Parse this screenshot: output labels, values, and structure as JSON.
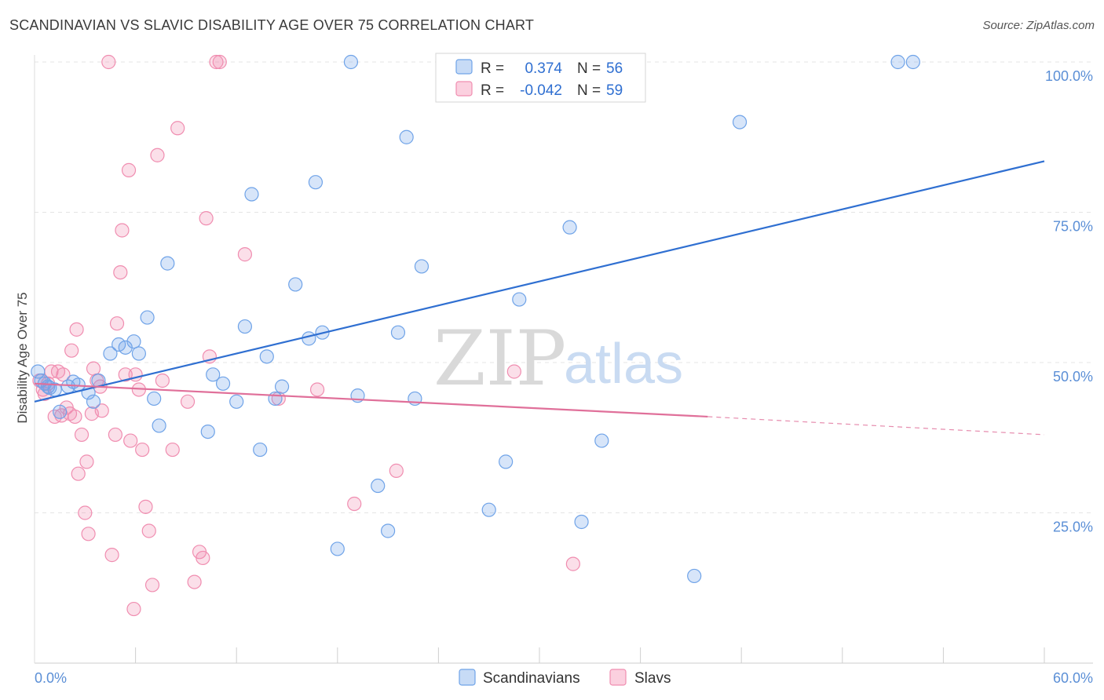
{
  "header": {
    "title": "SCANDINAVIAN VS SLAVIC DISABILITY AGE OVER 75 CORRELATION CHART",
    "source": "Source: ZipAtlas.com"
  },
  "watermark": {
    "zip": "ZIP",
    "atlas": "atlas"
  },
  "legend": {
    "r_label": "R =",
    "n_label": "N =",
    "rows": [
      {
        "r": "0.374",
        "n": "56",
        "color": "#6fa3e8"
      },
      {
        "r": "-0.042",
        "n": "59",
        "color": "#f08db0"
      }
    ]
  },
  "bottom_legend": [
    "Scandinavians",
    "Slavs"
  ],
  "chart_data": {
    "type": "scatter",
    "title": "SCANDINAVIAN VS SLAVIC DISABILITY AGE OVER 75 CORRELATION CHART",
    "xlabel": "",
    "ylabel": "Disability Age Over 75",
    "xlim": [
      0,
      60
    ],
    "ylim": [
      0,
      105
    ],
    "x_tick_labels": [
      "0.0%",
      "60.0%"
    ],
    "y_ticks": [
      25,
      50,
      75,
      100
    ],
    "y_tick_labels": [
      "25.0%",
      "50.0%",
      "75.0%",
      "100.0%"
    ],
    "grid": true,
    "legend_position": "top-center",
    "series": [
      {
        "name": "Scandinavians",
        "color": "#6fa3e8",
        "r": 0.374,
        "n": 56,
        "trend": {
          "x": [
            0,
            60
          ],
          "y": [
            43.5,
            83.5
          ]
        },
        "points": [
          [
            0.2,
            48.5
          ],
          [
            0.4,
            47.0
          ],
          [
            0.6,
            46.5
          ],
          [
            0.8,
            46.0
          ],
          [
            1.2,
            45.5
          ],
          [
            1.5,
            41.8
          ],
          [
            2.0,
            46.0
          ],
          [
            2.6,
            46.3
          ],
          [
            3.2,
            45.0
          ],
          [
            3.5,
            43.5
          ],
          [
            3.8,
            47.0
          ],
          [
            4.5,
            51.5
          ],
          [
            5.0,
            53.0
          ],
          [
            5.4,
            52.5
          ],
          [
            5.9,
            53.5
          ],
          [
            6.2,
            51.5
          ],
          [
            6.7,
            57.5
          ],
          [
            7.1,
            44.0
          ],
          [
            7.4,
            39.5
          ],
          [
            7.9,
            66.5
          ],
          [
            10.3,
            38.5
          ],
          [
            10.6,
            48.0
          ],
          [
            11.2,
            46.5
          ],
          [
            12.0,
            43.5
          ],
          [
            12.5,
            56.0
          ],
          [
            12.9,
            78.0
          ],
          [
            13.4,
            35.5
          ],
          [
            13.8,
            51.0
          ],
          [
            14.3,
            44.0
          ],
          [
            14.7,
            46.0
          ],
          [
            15.5,
            63.0
          ],
          [
            16.3,
            54.0
          ],
          [
            16.7,
            80.0
          ],
          [
            17.1,
            55.0
          ],
          [
            18.0,
            19.0
          ],
          [
            18.8,
            100.0
          ],
          [
            19.2,
            44.5
          ],
          [
            20.4,
            29.5
          ],
          [
            21.0,
            22.0
          ],
          [
            21.6,
            55.0
          ],
          [
            22.1,
            87.5
          ],
          [
            22.6,
            44.0
          ],
          [
            23.0,
            66.0
          ],
          [
            27.0,
            25.5
          ],
          [
            27.4,
            100.0
          ],
          [
            28.0,
            33.5
          ],
          [
            28.8,
            60.5
          ],
          [
            31.8,
            72.5
          ],
          [
            32.5,
            23.5
          ],
          [
            33.7,
            37.0
          ],
          [
            39.2,
            14.5
          ],
          [
            41.9,
            90.0
          ],
          [
            51.3,
            100.0
          ],
          [
            52.2,
            100.0
          ],
          [
            0.9,
            45.8
          ],
          [
            2.3,
            46.8
          ]
        ]
      },
      {
        "name": "Slavs",
        "color": "#f08db0",
        "r": -0.042,
        "n": 59,
        "trend": {
          "x": [
            0,
            40
          ],
          "y": [
            46.5,
            41.0
          ]
        },
        "trend_dashed": {
          "x": [
            40,
            60
          ],
          "y": [
            41.0,
            38.0
          ]
        },
        "points": [
          [
            0.3,
            47.0
          ],
          [
            0.5,
            45.5
          ],
          [
            0.8,
            46.5
          ],
          [
            1.0,
            48.5
          ],
          [
            1.2,
            41.0
          ],
          [
            1.4,
            48.5
          ],
          [
            1.6,
            41.2
          ],
          [
            1.7,
            48.0
          ],
          [
            1.9,
            42.5
          ],
          [
            2.1,
            41.5
          ],
          [
            2.2,
            52.0
          ],
          [
            2.4,
            41.0
          ],
          [
            2.5,
            55.5
          ],
          [
            2.6,
            31.5
          ],
          [
            2.8,
            38.0
          ],
          [
            3.0,
            25.0
          ],
          [
            3.1,
            33.5
          ],
          [
            3.2,
            21.5
          ],
          [
            3.4,
            41.5
          ],
          [
            3.5,
            49.0
          ],
          [
            3.7,
            47.0
          ],
          [
            3.9,
            46.0
          ],
          [
            4.0,
            42.0
          ],
          [
            4.4,
            100.0
          ],
          [
            4.6,
            18.0
          ],
          [
            4.8,
            38.0
          ],
          [
            4.9,
            56.5
          ],
          [
            5.1,
            65.0
          ],
          [
            5.2,
            72.0
          ],
          [
            5.4,
            48.0
          ],
          [
            5.6,
            82.0
          ],
          [
            5.7,
            37.0
          ],
          [
            5.9,
            9.0
          ],
          [
            6.0,
            48.0
          ],
          [
            6.2,
            45.5
          ],
          [
            6.4,
            35.5
          ],
          [
            6.6,
            26.0
          ],
          [
            6.8,
            22.0
          ],
          [
            7.0,
            13.0
          ],
          [
            7.3,
            84.5
          ],
          [
            7.6,
            47.0
          ],
          [
            8.2,
            35.5
          ],
          [
            8.5,
            89.0
          ],
          [
            9.1,
            43.5
          ],
          [
            9.5,
            13.5
          ],
          [
            9.8,
            18.5
          ],
          [
            10.0,
            17.5
          ],
          [
            10.2,
            74.0
          ],
          [
            10.4,
            51.0
          ],
          [
            10.8,
            100.0
          ],
          [
            11.0,
            100.0
          ],
          [
            12.5,
            68.0
          ],
          [
            14.5,
            44.0
          ],
          [
            16.8,
            45.5
          ],
          [
            19.0,
            26.5
          ],
          [
            21.5,
            32.0
          ],
          [
            28.5,
            48.5
          ],
          [
            32.0,
            16.5
          ],
          [
            0.6,
            44.8
          ]
        ]
      }
    ]
  }
}
